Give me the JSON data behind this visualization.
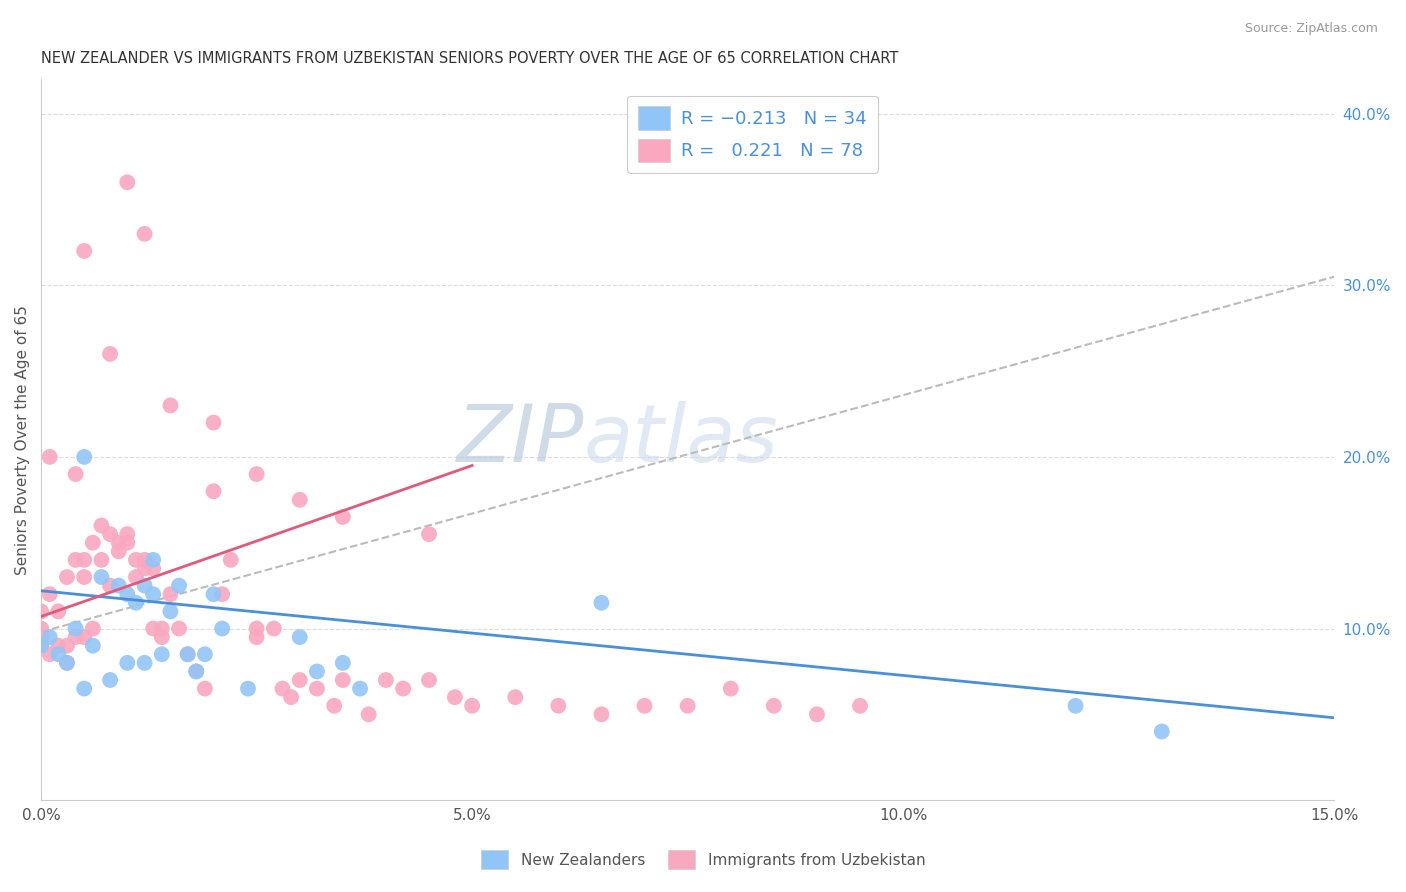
{
  "title": "NEW ZEALANDER VS IMMIGRANTS FROM UZBEKISTAN SENIORS POVERTY OVER THE AGE OF 65 CORRELATION CHART",
  "source": "Source: ZipAtlas.com",
  "ylabel": "Seniors Poverty Over the Age of 65",
  "legend_blue_label": "New Zealanders",
  "legend_pink_label": "Immigrants from Uzbekistan",
  "xlim": [
    0.0,
    0.15
  ],
  "ylim": [
    0.0,
    0.42
  ],
  "xticks": [
    0.0,
    0.05,
    0.1,
    0.15
  ],
  "xtick_labels": [
    "0.0%",
    "5.0%",
    "10.0%",
    "15.0%"
  ],
  "yticks_right": [
    0.1,
    0.2,
    0.3,
    0.4
  ],
  "ytick_labels_right": [
    "10.0%",
    "20.0%",
    "30.0%",
    "40.0%"
  ],
  "blue_color": "#92C5F7",
  "pink_color": "#F9A8C0",
  "blue_line_color": "#4A90D9",
  "pink_line_color": "#E05A7A",
  "dashed_line_color": "#BBBBBB",
  "watermark": "ZIPatlas",
  "watermark_color": "#CBD5E8",
  "blue_line_x": [
    0.0,
    0.15
  ],
  "blue_line_y": [
    0.122,
    0.048
  ],
  "pink_line_x": [
    0.0,
    0.05
  ],
  "pink_line_y": [
    0.107,
    0.195
  ],
  "dashed_line_x": [
    0.0,
    0.15
  ],
  "dashed_line_y": [
    0.098,
    0.305
  ],
  "blue_scatter_x": [
    0.0,
    0.001,
    0.002,
    0.003,
    0.004,
    0.005,
    0.005,
    0.006,
    0.007,
    0.008,
    0.009,
    0.01,
    0.01,
    0.011,
    0.012,
    0.012,
    0.013,
    0.013,
    0.014,
    0.015,
    0.016,
    0.017,
    0.018,
    0.019,
    0.02,
    0.021,
    0.024,
    0.03,
    0.032,
    0.035,
    0.037,
    0.065,
    0.12,
    0.13
  ],
  "blue_scatter_y": [
    0.09,
    0.095,
    0.085,
    0.08,
    0.1,
    0.065,
    0.2,
    0.09,
    0.13,
    0.07,
    0.125,
    0.12,
    0.08,
    0.115,
    0.08,
    0.125,
    0.12,
    0.14,
    0.085,
    0.11,
    0.125,
    0.085,
    0.075,
    0.085,
    0.12,
    0.1,
    0.065,
    0.095,
    0.075,
    0.08,
    0.065,
    0.115,
    0.055,
    0.04
  ],
  "pink_scatter_x": [
    0.0,
    0.0,
    0.0,
    0.0,
    0.001,
    0.001,
    0.001,
    0.002,
    0.002,
    0.003,
    0.003,
    0.003,
    0.004,
    0.004,
    0.004,
    0.005,
    0.005,
    0.005,
    0.006,
    0.006,
    0.007,
    0.007,
    0.008,
    0.008,
    0.009,
    0.009,
    0.01,
    0.01,
    0.011,
    0.011,
    0.012,
    0.012,
    0.013,
    0.013,
    0.014,
    0.014,
    0.015,
    0.016,
    0.017,
    0.018,
    0.019,
    0.02,
    0.021,
    0.022,
    0.025,
    0.025,
    0.027,
    0.028,
    0.029,
    0.03,
    0.032,
    0.034,
    0.035,
    0.038,
    0.04,
    0.042,
    0.045,
    0.048,
    0.05,
    0.055,
    0.06,
    0.065,
    0.07,
    0.075,
    0.08,
    0.085,
    0.09,
    0.095,
    0.01,
    0.012,
    0.005,
    0.008,
    0.015,
    0.02,
    0.025,
    0.03,
    0.035,
    0.045
  ],
  "pink_scatter_y": [
    0.09,
    0.1,
    0.11,
    0.095,
    0.12,
    0.085,
    0.2,
    0.09,
    0.11,
    0.13,
    0.09,
    0.08,
    0.14,
    0.095,
    0.19,
    0.14,
    0.13,
    0.095,
    0.15,
    0.1,
    0.16,
    0.14,
    0.155,
    0.125,
    0.15,
    0.145,
    0.15,
    0.155,
    0.13,
    0.14,
    0.135,
    0.14,
    0.135,
    0.1,
    0.1,
    0.095,
    0.12,
    0.1,
    0.085,
    0.075,
    0.065,
    0.18,
    0.12,
    0.14,
    0.1,
    0.095,
    0.1,
    0.065,
    0.06,
    0.07,
    0.065,
    0.055,
    0.07,
    0.05,
    0.07,
    0.065,
    0.07,
    0.06,
    0.055,
    0.06,
    0.055,
    0.05,
    0.055,
    0.055,
    0.065,
    0.055,
    0.05,
    0.055,
    0.36,
    0.33,
    0.32,
    0.26,
    0.23,
    0.22,
    0.19,
    0.175,
    0.165,
    0.155
  ]
}
